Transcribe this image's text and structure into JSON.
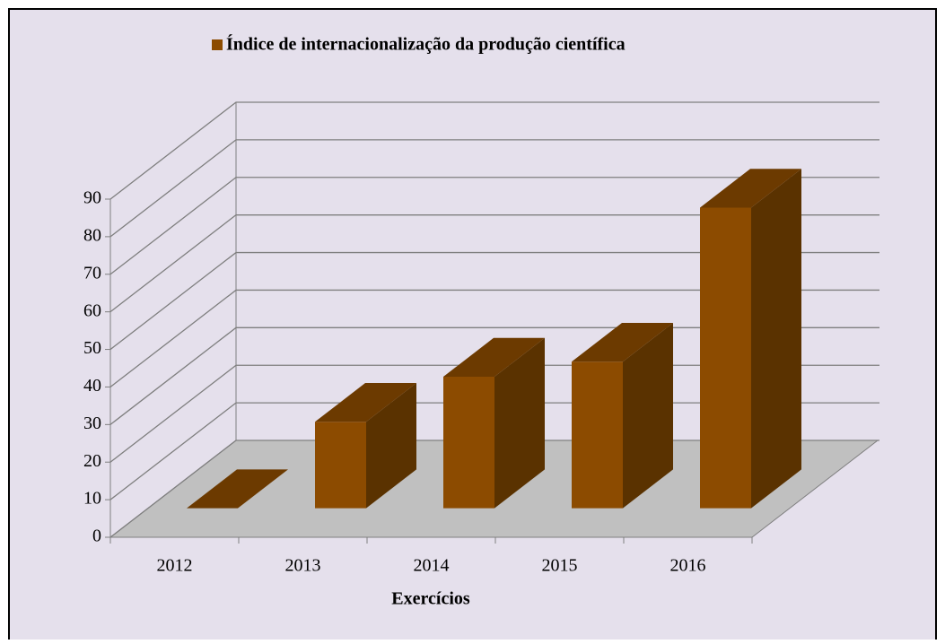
{
  "chart_data": {
    "type": "bar3d",
    "x_label": "Exercícios",
    "categories": [
      "2012",
      "2013",
      "2014",
      "2015",
      "2016"
    ],
    "series": [
      {
        "name": "Índice de internacionalização da produção científica",
        "color": "#8c4b00",
        "values": [
          0,
          23,
          35,
          39,
          80
        ]
      }
    ],
    "ylim": [
      0,
      90
    ],
    "yticks": [
      0,
      10,
      20,
      30,
      40,
      50,
      60,
      70,
      80,
      90
    ],
    "grid": true,
    "legend": "top"
  }
}
